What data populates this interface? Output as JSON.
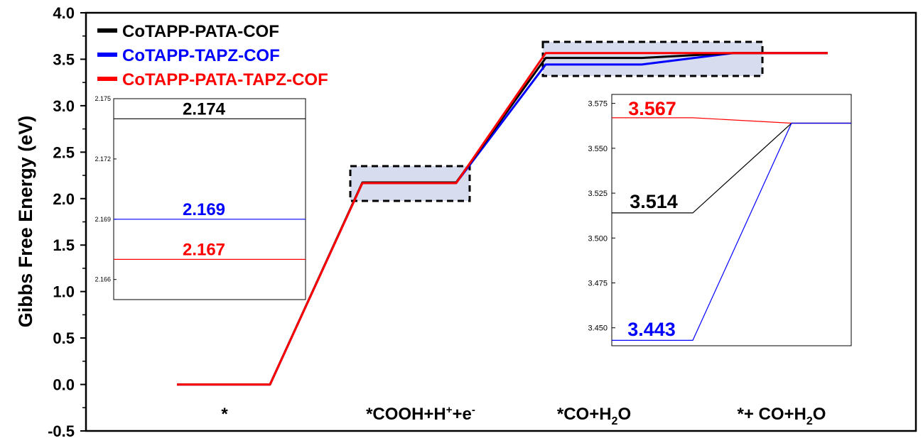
{
  "chart_data": {
    "type": "line",
    "ylabel": "Gibbs Free Energy (eV)",
    "ylim": [
      -0.5,
      4.0
    ],
    "yticks": [
      "4.0",
      "3.5",
      "3.0",
      "2.5",
      "2.0",
      "1.5",
      "1.0",
      "0.5",
      "0.0",
      "-0.5"
    ],
    "categories": [
      {
        "text": "*",
        "sub": "",
        "tail": ""
      },
      {
        "text": "*COOH+H",
        "sup": "+",
        "tail": "+e",
        "sup2": "-"
      },
      {
        "text": "*CO+H",
        "sub": "2",
        "tail": "O"
      },
      {
        "text": "*+ CO+H",
        "sub": "2",
        "tail": "O"
      }
    ],
    "series": [
      {
        "name": "CoTAPP-PATA-COF",
        "color": "#000000",
        "values": [
          0.0,
          2.174,
          3.514,
          3.567
        ]
      },
      {
        "name": "CoTAPP-TAPZ-COF",
        "color": "#0000ff",
        "values": [
          0.0,
          2.169,
          3.443,
          3.567
        ]
      },
      {
        "name": "CoTAPP-PATA-TAPZ-COF",
        "color": "#ff0000",
        "values": [
          0.0,
          2.167,
          3.567,
          3.567
        ]
      }
    ],
    "legend_position": "top-left",
    "insets": [
      {
        "ylim": [
          2.165,
          2.175
        ],
        "yticks": [
          "2.175",
          "2.172",
          "2.169",
          "2.166"
        ],
        "labels": [
          {
            "text": "2.174",
            "color": "#000000",
            "value": 2.174
          },
          {
            "text": "2.169",
            "color": "#0000ff",
            "value": 2.169
          },
          {
            "text": "2.167",
            "color": "#ff0000",
            "value": 2.167
          }
        ]
      },
      {
        "ylim": [
          3.44,
          3.58
        ],
        "yticks": [
          "3.575",
          "3.550",
          "3.525",
          "3.500",
          "3.475",
          "3.450"
        ],
        "labels": [
          {
            "text": "3.567",
            "color": "#ff0000",
            "value": 3.567
          },
          {
            "text": "3.514",
            "color": "#000000",
            "value": 3.514
          },
          {
            "text": "3.443",
            "color": "#0000ff",
            "value": 3.443
          }
        ]
      }
    ]
  }
}
